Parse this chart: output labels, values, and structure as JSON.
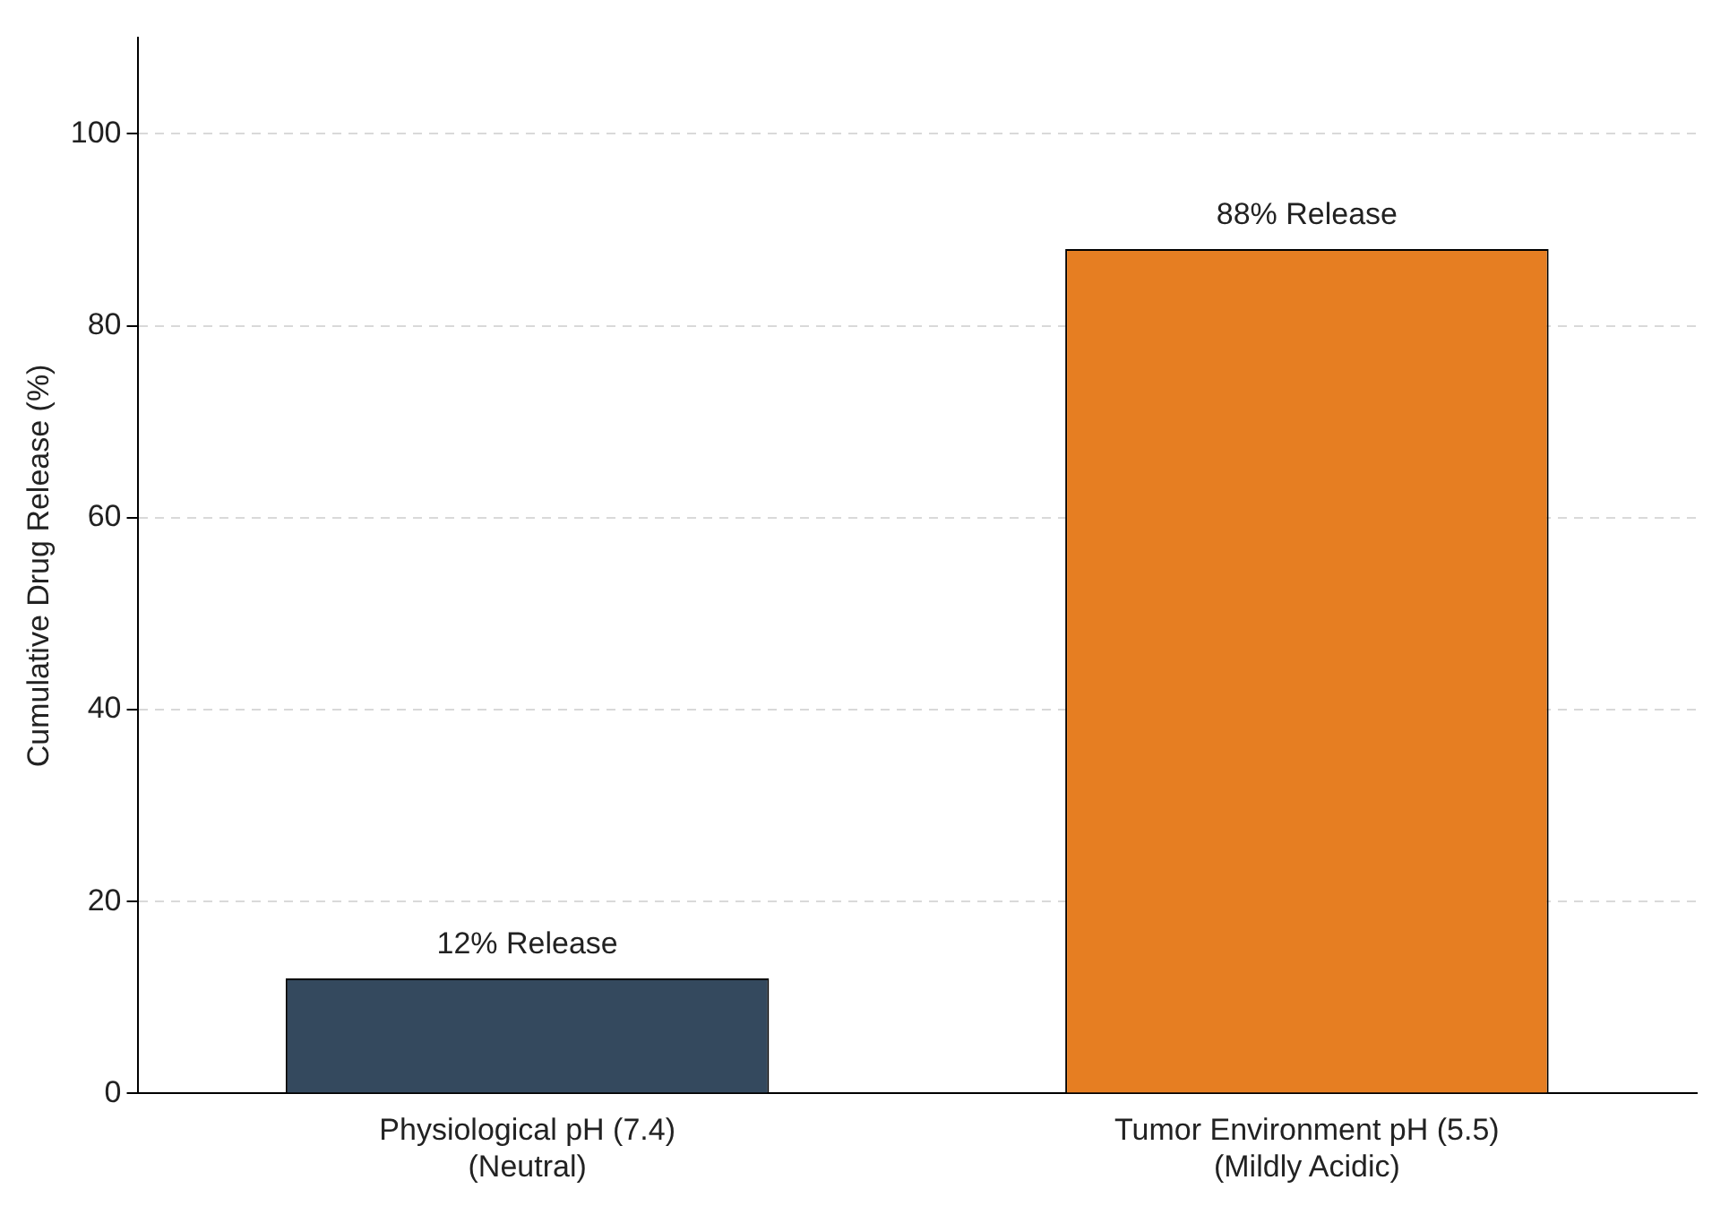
{
  "chart_data": {
    "type": "bar",
    "ylabel": "Cumulative Drug Release (%)",
    "categories": [
      "Physiological pH (7.4)\n(Neutral)",
      "Tumor Environment pH (5.5)\n(Mildly Acidic)"
    ],
    "values": [
      12,
      88
    ],
    "colors": [
      "#34495e",
      "#e67e22"
    ],
    "value_labels": [
      "12% Release",
      "88% Release"
    ],
    "ylim": [
      0,
      110
    ],
    "yticks": [
      0,
      20,
      40,
      60,
      80,
      100
    ],
    "grid": "y",
    "line_style": "dashed"
  }
}
